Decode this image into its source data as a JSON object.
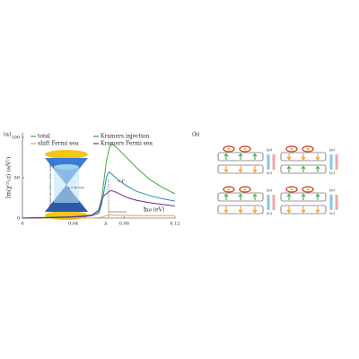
{
  "chart_data": {
    "type": "line",
    "panel_label": "(a)",
    "y_label": "Im(χ⁽²⁾ₓz) (e/V²)",
    "x_label": "ħω (eV)",
    "x": [
      0,
      0.01,
      0.02,
      0.03,
      0.04,
      0.05,
      0.055,
      0.06,
      0.062,
      0.064,
      0.066,
      0.068,
      0.07,
      0.072,
      0.075,
      0.08,
      0.085,
      0.09,
      0.1,
      0.11,
      0.12
    ],
    "series": [
      {
        "name": "total",
        "color": "#3cb043",
        "values": [
          0,
          0.5,
          1,
          1.5,
          2,
          3,
          4,
          8,
          20,
          45,
          70,
          85,
          92,
          90,
          86,
          78,
          70,
          62,
          48,
          38,
          30
        ]
      },
      {
        "name": "shift Fermi sea",
        "color": "#f0a030",
        "values": [
          0,
          0,
          0,
          0,
          0,
          0,
          0,
          0.5,
          1,
          2,
          3,
          3.5,
          3.5,
          3.5,
          3.5,
          3.5,
          3,
          3,
          3,
          3,
          3
        ]
      },
      {
        "name": "Kramers injection",
        "color": "#2a8ab8",
        "values": [
          0,
          0.3,
          0.6,
          1,
          1.5,
          2,
          3,
          6,
          15,
          32,
          50,
          57,
          55,
          52,
          48,
          42,
          37,
          33,
          28,
          24,
          21
        ]
      },
      {
        "name": "Kramers Fermi sea",
        "color": "#6a2a8a",
        "values": [
          0,
          0.3,
          0.6,
          1,
          1.5,
          2.5,
          4,
          10,
          22,
          28,
          30,
          33,
          34,
          33,
          31,
          27,
          24,
          22,
          19,
          17,
          15
        ]
      }
    ],
    "xlim": [
      0,
      0.12
    ],
    "ylim": [
      0,
      100
    ],
    "xticks": [
      0,
      0.04,
      0.08,
      0.12
    ],
    "yticks": [
      0,
      50,
      100
    ],
    "annotations": [
      "Δ",
      "~ Γ",
      "photon absorption active bands",
      "μ = 60 meV"
    ]
  },
  "diagram": {
    "panel_label": "(b)",
    "blocks": [
      {
        "top_label": "⟨ρᵢ⟩",
        "bottom_label": "⟨εᵢ⟩"
      },
      {
        "top_label": "⟨ρᵢ⟩",
        "bottom_label": "⟨εᵢ⟩"
      },
      {
        "top_label": "⟨ρᵢ⟩",
        "bottom_label": "⟨εᵢ⟩"
      },
      {
        "top_label": "⟨ρᵢ⟩",
        "bottom_label": "⟨εᵢ⟩"
      }
    ]
  }
}
